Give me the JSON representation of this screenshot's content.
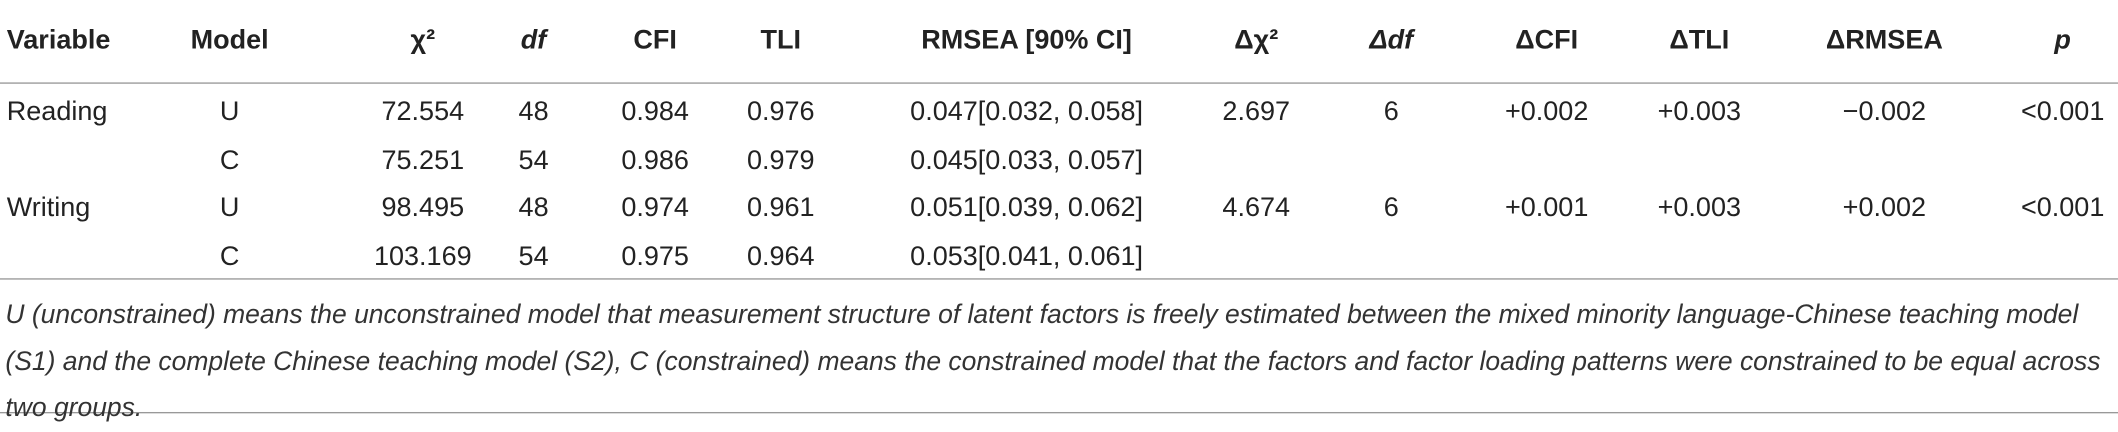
{
  "table": {
    "header": [
      "Variable",
      "Model",
      "χ²",
      "df",
      "CFI",
      "TLI",
      "RMSEA [90% CI]",
      "Δχ²",
      "Δdf",
      "ΔCFI",
      "ΔTLI",
      "ΔRMSEA",
      "p"
    ],
    "rows": [
      [
        "Reading",
        "U",
        "72.554",
        "48",
        "0.984",
        "0.976",
        "0.047[0.032, 0.058]",
        "2.697",
        "6",
        "+0.002",
        "+0.003",
        "−0.002",
        "<0.001"
      ],
      [
        null,
        "C",
        "75.251",
        "54",
        "0.986",
        "0.979",
        "0.045[0.033, 0.057]",
        null,
        null,
        null,
        null,
        null,
        null
      ],
      [
        "Writing",
        "U",
        "98.495",
        "48",
        "0.974",
        "0.961",
        "0.051[0.039, 0.062]",
        "4.674",
        "6",
        "+0.001",
        "+0.003",
        "+0.002",
        "<0.001"
      ],
      [
        null,
        "C",
        "103.169",
        "54",
        "0.975",
        "0.964",
        "0.053[0.041, 0.061]",
        null,
        null,
        null,
        null,
        null,
        null
      ]
    ],
    "footnote": "U (unconstrained) means the unconstrained model that measurement structure of latent factors is freely estimated between the mixed minority language-Chinese teaching model (S1) and the complete Chinese teaching model (S2), C (constrained) means the constrained model that the factors and factor loading patterns were constrained to be equal across two groups."
  }
}
